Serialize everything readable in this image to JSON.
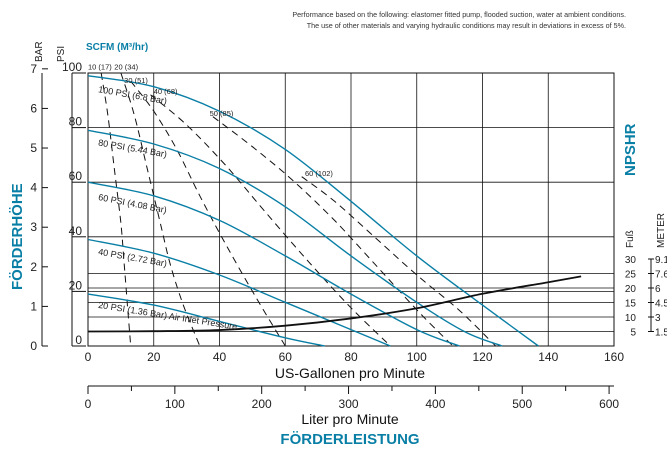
{
  "note": {
    "line1": "Performance based on the following: elastomer fitted pump, flooded suction, water at ambient conditions.",
    "line2": "The use of other materials and varying hydraulic conditions may result in deviations in excess of 5%."
  },
  "labels": {
    "bar": "BAR",
    "psi": "PSI",
    "scfm": "SCFM (M³/hr)",
    "foerderhoehe": "FÖRDERHÖHE",
    "npshr": "NPSHR",
    "fuss": "Fuß",
    "meter": "METER",
    "x_gpm": "US-Gallonen pro Minute",
    "x_lpm": "Liter pro Minute",
    "foerderleistung": "FÖRDERLEISTUNG"
  },
  "chart_data": {
    "type": "line",
    "xlabel": "US-Gallonen pro Minute",
    "x2label": "Liter pro Minute",
    "ylabel": "FÖRDERHÖHE",
    "y2label": "NPSHR",
    "xlim": [
      0,
      160
    ],
    "ylim": [
      0,
      100
    ],
    "x_ticks": [
      0,
      20,
      40,
      60,
      80,
      100,
      120,
      140,
      160
    ],
    "x2_ticks": [
      0,
      100,
      200,
      300,
      400,
      500,
      600
    ],
    "y_psi_ticks": [
      0,
      20,
      40,
      60,
      80,
      100
    ],
    "y_bar_ticks": [
      0,
      1,
      2,
      3,
      4,
      5,
      6,
      7
    ],
    "npshr_ticks": [
      {
        "ft": "5",
        "m": "1.5"
      },
      {
        "ft": "10",
        "m": "3"
      },
      {
        "ft": "15",
        "m": "4.5"
      },
      {
        "ft": "20",
        "m": "6"
      },
      {
        "ft": "25",
        "m": "7.6"
      },
      {
        "ft": "30",
        "m": "9.1"
      }
    ],
    "grid": true,
    "head_curves": [
      {
        "label": "100 PSI (6.8 Bar)",
        "points": [
          [
            0,
            99
          ],
          [
            20,
            95
          ],
          [
            40,
            86
          ],
          [
            60,
            72
          ],
          [
            80,
            53
          ],
          [
            100,
            33
          ],
          [
            120,
            15
          ],
          [
            137,
            0
          ]
        ]
      },
      {
        "label": "80 PSI (5.44 Bar)",
        "points": [
          [
            0,
            79
          ],
          [
            20,
            74
          ],
          [
            40,
            65
          ],
          [
            60,
            51
          ],
          [
            80,
            33
          ],
          [
            100,
            16
          ],
          [
            115,
            5
          ],
          [
            126,
            0
          ]
        ]
      },
      {
        "label": "60 PSI (4.08 Bar)",
        "points": [
          [
            0,
            60
          ],
          [
            20,
            55
          ],
          [
            40,
            46
          ],
          [
            60,
            33
          ],
          [
            80,
            19
          ],
          [
            100,
            6
          ],
          [
            113,
            0
          ]
        ]
      },
      {
        "label": "40 PSI (2.72 Bar)",
        "points": [
          [
            0,
            39
          ],
          [
            20,
            34
          ],
          [
            40,
            26
          ],
          [
            60,
            16
          ],
          [
            80,
            6
          ],
          [
            92,
            0
          ]
        ]
      },
      {
        "label": "20 PSI (1.36 Bar) Air Inlet Pressure",
        "points": [
          [
            0,
            19
          ],
          [
            20,
            15
          ],
          [
            40,
            9
          ],
          [
            60,
            3
          ],
          [
            72,
            0
          ]
        ]
      }
    ],
    "air_curves": [
      {
        "label": "10 (17)",
        "points": [
          [
            4,
            100
          ],
          [
            6,
            85
          ],
          [
            8,
            65
          ],
          [
            10,
            45
          ],
          [
            11,
            30
          ],
          [
            12,
            15
          ],
          [
            13,
            0
          ]
        ]
      },
      {
        "label": "20 (34)",
        "points": [
          [
            10,
            100
          ],
          [
            14,
            85
          ],
          [
            18,
            65
          ],
          [
            22,
            45
          ],
          [
            25,
            30
          ],
          [
            29,
            15
          ],
          [
            34,
            0
          ]
        ]
      },
      {
        "label": "30 (51)",
        "points": [
          [
            13,
            97
          ],
          [
            20,
            86
          ],
          [
            27,
            72
          ],
          [
            34,
            55
          ],
          [
            42,
            37
          ],
          [
            51,
            18
          ],
          [
            60,
            0
          ]
        ]
      },
      {
        "label": "40 (68)",
        "points": [
          [
            19,
            92
          ],
          [
            30,
            81
          ],
          [
            42,
            66
          ],
          [
            54,
            49
          ],
          [
            67,
            31
          ],
          [
            80,
            14
          ],
          [
            92,
            0
          ]
        ]
      },
      {
        "label": "50 (85)",
        "points": [
          [
            38,
            84
          ],
          [
            50,
            73
          ],
          [
            62,
            61
          ],
          [
            75,
            46
          ],
          [
            88,
            29
          ],
          [
            101,
            12
          ],
          [
            111,
            0
          ]
        ]
      },
      {
        "label": "60 (102)",
        "points": [
          [
            65,
            62
          ],
          [
            75,
            53
          ],
          [
            88,
            39
          ],
          [
            100,
            26
          ],
          [
            113,
            13
          ],
          [
            124,
            0
          ]
        ]
      }
    ],
    "npshr_curve": {
      "points": [
        [
          0,
          5
        ],
        [
          20,
          5.1
        ],
        [
          40,
          5.5
        ],
        [
          60,
          7
        ],
        [
          80,
          9.5
        ],
        [
          100,
          13
        ],
        [
          120,
          18
        ],
        [
          140,
          22
        ],
        [
          150,
          24
        ]
      ]
    },
    "labels": {
      "head": [
        "100 PSI (6.8 Bar)",
        "80 PSI (5.44 Bar)",
        "60 PSI (4.08 Bar)",
        "40 PSI (2.72 Bar)",
        "20 PSI (1.36 Bar) Air Inlet Pressure"
      ],
      "air": [
        "10 (17)",
        "20 (34)",
        "30 (51)",
        "40 (68)",
        "50 (85)",
        "60 (102)"
      ]
    }
  }
}
